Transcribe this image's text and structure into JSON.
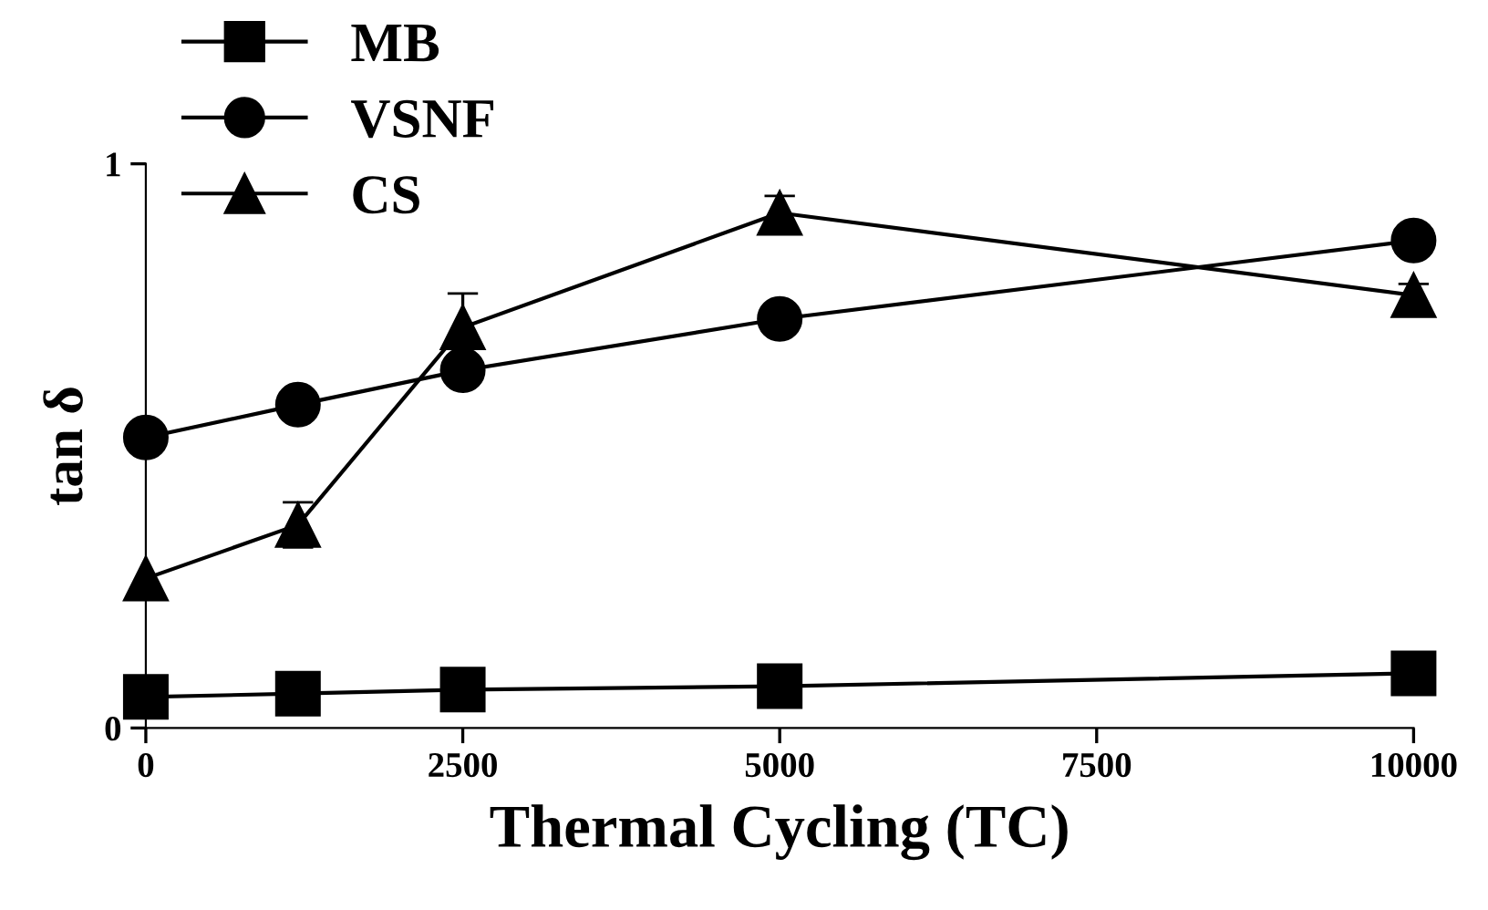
{
  "chart_data": {
    "type": "line",
    "xlabel": "Thermal Cycling (TC)",
    "ylabel": "tan δ",
    "x": [
      0,
      1200,
      2500,
      5000,
      10000
    ],
    "xlim": [
      0,
      10000
    ],
    "xticks": [
      0,
      2500,
      5000,
      7500,
      10000
    ],
    "ylim": [
      0,
      1
    ],
    "yticks": [
      0,
      1
    ],
    "legend": "top left",
    "grid": false,
    "series": [
      {
        "name": "MB",
        "color": "#000000",
        "marker": "square",
        "values": [
          0.055,
          0.061,
          0.068,
          0.074,
          0.097
        ]
      },
      {
        "name": "VSNF",
        "color": "#000000",
        "marker": "circle",
        "values": [
          0.515,
          0.573,
          0.634,
          0.725,
          0.864
        ]
      },
      {
        "name": "CS",
        "color": "#000000",
        "marker": "triangle",
        "values": [
          0.265,
          0.36,
          0.71,
          0.913,
          0.767
        ],
        "errors": [
          null,
          0.04,
          0.06,
          0.03,
          0.02
        ]
      }
    ]
  }
}
